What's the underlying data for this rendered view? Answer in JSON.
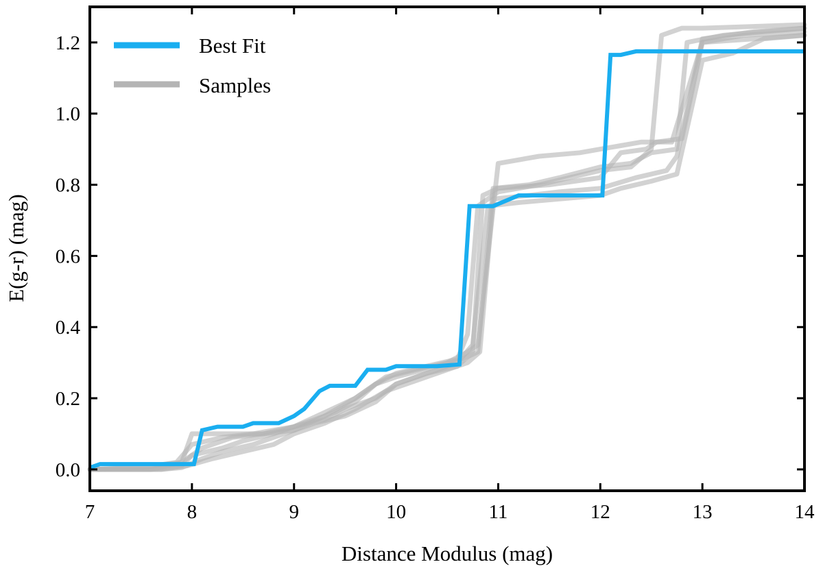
{
  "chart_data": {
    "type": "line",
    "title": "",
    "xlabel": "Distance Modulus (mag)",
    "ylabel": "E(g-r) (mag)",
    "xlim": [
      7,
      14
    ],
    "ylim": [
      -0.06,
      1.3
    ],
    "xticks": [
      7,
      8,
      9,
      10,
      11,
      12,
      13,
      14
    ],
    "xtick_labels": [
      "7",
      "8",
      "9",
      "10",
      "11",
      "12",
      "13",
      "14"
    ],
    "yticks": [
      0.0,
      0.2,
      0.4,
      0.6,
      0.8,
      1.0,
      1.2
    ],
    "ytick_labels": [
      "0.0",
      "0.2",
      "0.4",
      "0.6",
      "0.8",
      "1.0",
      "1.2"
    ],
    "grid": false,
    "legend_position": "top-left",
    "legend": [
      {
        "label": "Best Fit",
        "color": "#1aaef0"
      },
      {
        "label": "Samples",
        "color": "#b4b4b4"
      }
    ],
    "best_fit": {
      "name": "Best Fit",
      "color": "#1aaef0",
      "x": [
        7.0,
        7.1,
        7.8,
        8.02,
        8.1,
        8.25,
        8.5,
        8.6,
        8.85,
        9.0,
        9.1,
        9.25,
        9.35,
        9.6,
        9.72,
        9.9,
        10.0,
        10.4,
        10.62,
        10.72,
        10.8,
        10.95,
        11.2,
        11.5,
        12.02,
        12.1,
        12.2,
        12.35,
        12.5,
        12.8,
        13.0,
        14.0
      ],
      "y": [
        0.005,
        0.015,
        0.015,
        0.015,
        0.11,
        0.12,
        0.12,
        0.13,
        0.13,
        0.15,
        0.17,
        0.22,
        0.235,
        0.235,
        0.28,
        0.28,
        0.29,
        0.29,
        0.295,
        0.74,
        0.74,
        0.74,
        0.77,
        0.77,
        0.77,
        1.165,
        1.165,
        1.175,
        1.175,
        1.175,
        1.175,
        1.175
      ]
    },
    "samples": {
      "name": "Samples",
      "color": "#b4b4b4",
      "opacity": 0.6,
      "series": [
        {
          "x": [
            7.0,
            7.5,
            7.9,
            8.0,
            8.2,
            8.4,
            8.7,
            9.0,
            9.2,
            9.4,
            9.6,
            9.8,
            10.0,
            10.3,
            10.6,
            10.7,
            10.8,
            11.0,
            11.4,
            11.7,
            12.0,
            12.3,
            12.5,
            12.6,
            12.8,
            13.0,
            13.5,
            14.0
          ],
          "y": [
            0.0,
            0.005,
            0.02,
            0.1,
            0.1,
            0.1,
            0.1,
            0.12,
            0.14,
            0.16,
            0.19,
            0.24,
            0.27,
            0.29,
            0.31,
            0.38,
            0.74,
            0.78,
            0.8,
            0.82,
            0.84,
            0.85,
            0.9,
            1.22,
            1.24,
            1.24,
            1.245,
            1.25
          ]
        },
        {
          "x": [
            7.0,
            7.6,
            7.9,
            8.0,
            8.3,
            8.5,
            8.8,
            9.0,
            9.3,
            9.5,
            9.8,
            10.0,
            10.3,
            10.6,
            10.75,
            10.85,
            11.0,
            11.5,
            12.0,
            12.2,
            12.45,
            12.55,
            12.8,
            13.0,
            13.5,
            14.0
          ],
          "y": [
            0.0,
            0.0,
            0.01,
            0.04,
            0.06,
            0.08,
            0.1,
            0.12,
            0.14,
            0.17,
            0.2,
            0.24,
            0.27,
            0.29,
            0.33,
            0.77,
            0.79,
            0.8,
            0.82,
            0.89,
            0.9,
            0.92,
            0.93,
            1.2,
            1.21,
            1.22
          ]
        },
        {
          "x": [
            7.0,
            7.7,
            7.9,
            8.1,
            8.3,
            8.6,
            8.8,
            9.0,
            9.3,
            9.6,
            9.8,
            10.0,
            10.4,
            10.65,
            10.8,
            10.95,
            11.3,
            11.6,
            12.0,
            12.3,
            12.5,
            12.75,
            12.85,
            13.2,
            13.6,
            14.0
          ],
          "y": [
            0.0,
            0.0,
            0.005,
            0.03,
            0.05,
            0.07,
            0.09,
            0.11,
            0.15,
            0.2,
            0.24,
            0.26,
            0.29,
            0.31,
            0.33,
            0.79,
            0.8,
            0.82,
            0.85,
            0.86,
            0.89,
            0.9,
            1.2,
            1.22,
            1.23,
            1.24
          ]
        },
        {
          "x": [
            7.0,
            7.7,
            7.95,
            8.2,
            8.5,
            8.8,
            9.0,
            9.3,
            9.6,
            9.9,
            10.2,
            10.5,
            10.7,
            10.82,
            10.95,
            11.3,
            11.6,
            12.0,
            12.35,
            12.65,
            12.75,
            13.0,
            13.5,
            14.0
          ],
          "y": [
            0.0,
            0.0,
            0.01,
            0.03,
            0.05,
            0.07,
            0.1,
            0.13,
            0.17,
            0.22,
            0.25,
            0.28,
            0.3,
            0.33,
            0.76,
            0.77,
            0.78,
            0.79,
            0.82,
            0.84,
            0.88,
            1.21,
            1.23,
            1.24
          ]
        },
        {
          "x": [
            7.0,
            7.6,
            7.9,
            8.1,
            8.4,
            8.7,
            9.0,
            9.2,
            9.5,
            9.8,
            10.0,
            10.3,
            10.6,
            10.75,
            10.9,
            11.2,
            11.6,
            12.0,
            12.2,
            12.5,
            12.75,
            13.0,
            13.3,
            13.6,
            14.0
          ],
          "y": [
            0.0,
            0.0,
            0.02,
            0.06,
            0.09,
            0.1,
            0.11,
            0.13,
            0.15,
            0.19,
            0.24,
            0.27,
            0.3,
            0.35,
            0.74,
            0.75,
            0.76,
            0.77,
            0.79,
            0.81,
            0.83,
            1.15,
            1.17,
            1.21,
            1.22
          ]
        },
        {
          "x": [
            7.0,
            7.5,
            7.85,
            8.0,
            8.3,
            8.6,
            9.0,
            9.3,
            9.6,
            9.9,
            10.2,
            10.5,
            10.7,
            10.8,
            11.0,
            11.4,
            11.8,
            12.0,
            12.2,
            12.4,
            12.7,
            13.0,
            13.4,
            14.0
          ],
          "y": [
            0.0,
            0.005,
            0.02,
            0.07,
            0.09,
            0.1,
            0.12,
            0.16,
            0.2,
            0.26,
            0.28,
            0.3,
            0.33,
            0.35,
            0.86,
            0.88,
            0.89,
            0.9,
            0.91,
            0.92,
            0.92,
            1.2,
            1.22,
            1.23
          ]
        }
      ]
    }
  }
}
